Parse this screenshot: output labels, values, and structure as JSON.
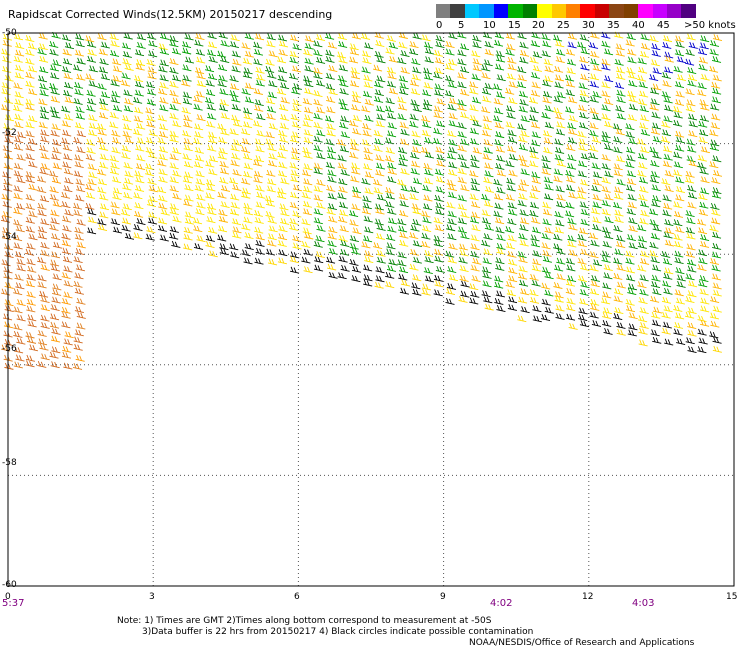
{
  "title": "Rapidscat Corrected Winds(12.5KM) 20150217 descending",
  "legend": {
    "labels": [
      "0",
      "5",
      "10",
      "15",
      "20",
      "25",
      "30",
      "35",
      "40",
      "45",
      ">50 knots"
    ],
    "colors": [
      "#7f7f7f",
      "#404040",
      "#00c8ff",
      "#0096ff",
      "#0000ff",
      "#00b400",
      "#008000",
      "#ffff00",
      "#ffc800",
      "#ff7f00",
      "#ff0000",
      "#c80000",
      "#8b4513",
      "#804000",
      "#ff00ff",
      "#c800ff",
      "#9600c8",
      "#500080"
    ]
  },
  "axes": {
    "lat_labels": [
      "-50",
      "-52",
      "-54",
      "-56",
      "-58",
      "-60"
    ],
    "lon_labels": [
      "0",
      "3",
      "6",
      "9",
      "12",
      "15"
    ]
  },
  "times": {
    "start": "5:37",
    "mid": "4:02",
    "end": "4:03"
  },
  "notes": {
    "line1": "Note: 1) Times are GMT 2)Times along bottom correspond to measurement at -50S",
    "line2": "3)Data buffer is 22 hrs from 20150217 4) Black circles indicate possible contamination",
    "credit": "NOAA/NESDIS/Office of Research and Applications"
  },
  "chart_data": {
    "type": "map",
    "title": "Rapidscat Corrected Winds(12.5KM) 20150217 descending",
    "lat_range": [
      -60,
      -50
    ],
    "lon_range": [
      0,
      15
    ],
    "grid": true,
    "legend_position": "top-right",
    "legend_units": "knots",
    "legend_values": [
      0,
      5,
      10,
      15,
      20,
      25,
      30,
      35,
      40,
      45,
      50
    ]
  }
}
